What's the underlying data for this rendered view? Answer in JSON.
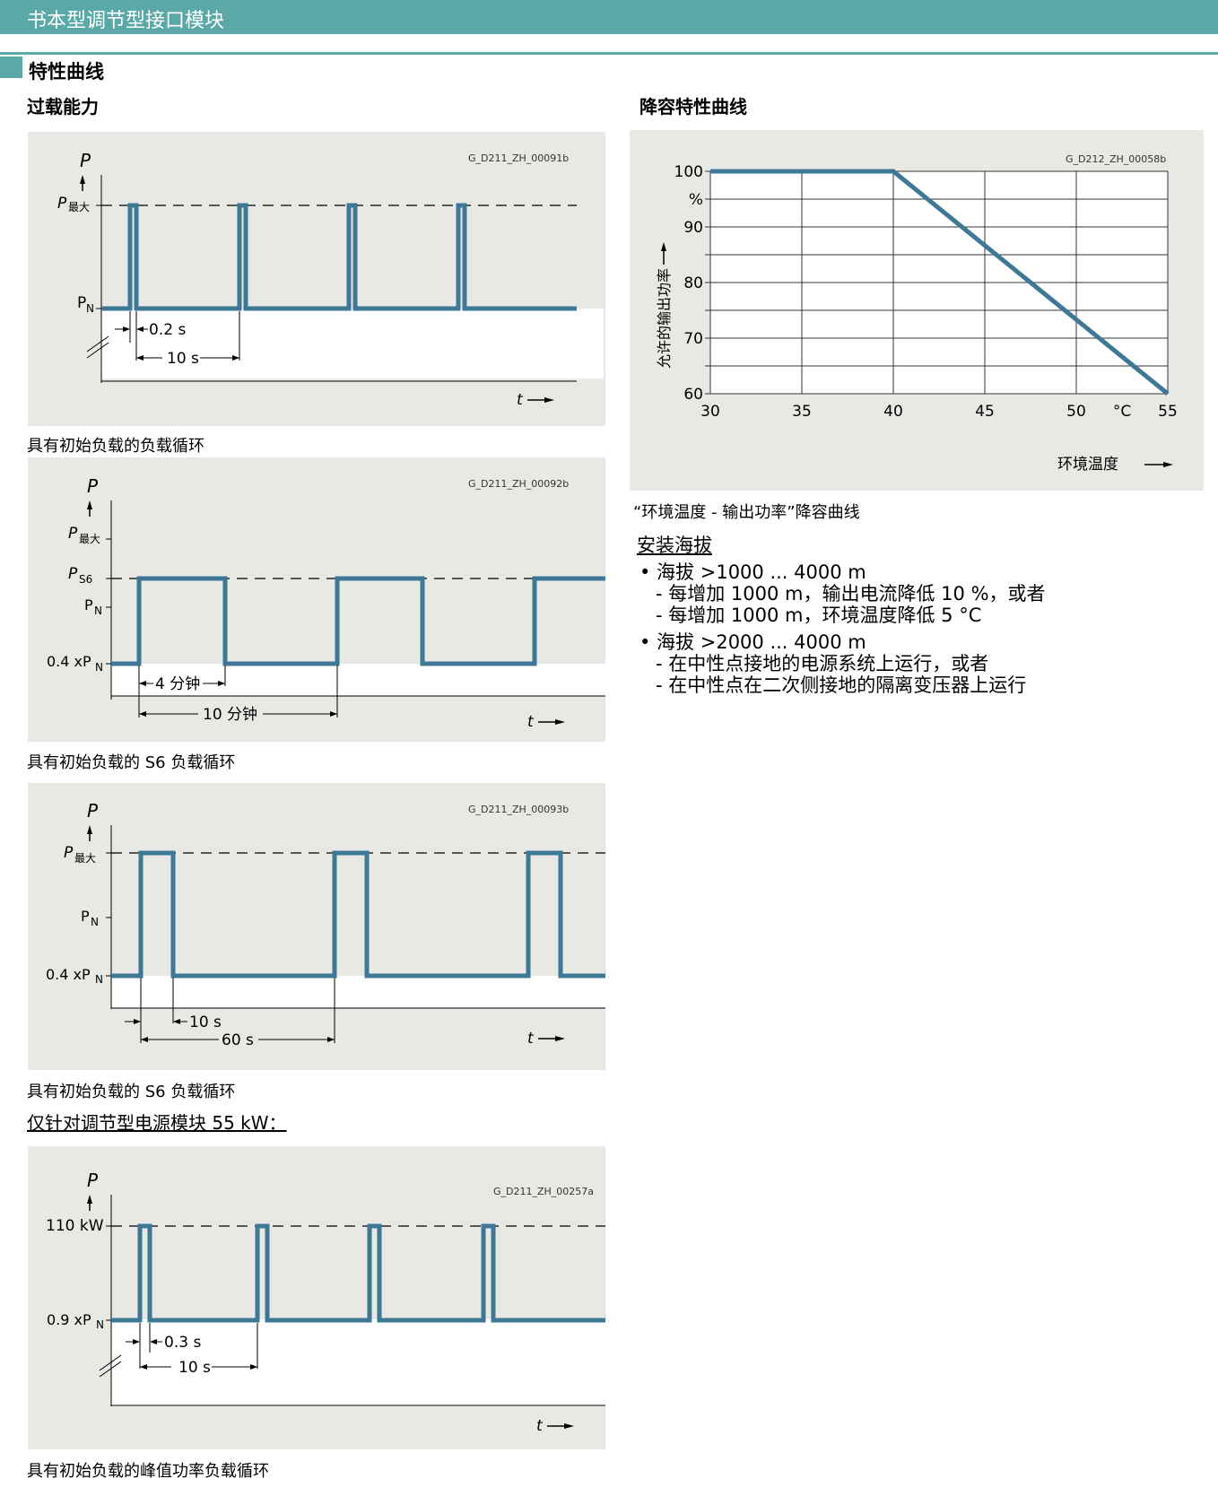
{
  "header": {
    "title": "书本型调节型接口模块"
  },
  "section": {
    "title": "特性曲线"
  },
  "overload": {
    "title": "过载能力"
  },
  "derating": {
    "title": "降容特性曲线"
  },
  "charts": {
    "c1": {
      "id": "G_D211_ZH_00091b",
      "y_label": "P",
      "pmax": "最大",
      "pn": "N",
      "t1": "0.2 s",
      "t2": "10 s",
      "t": "t",
      "caption": "具有初始负载的负载循环"
    },
    "c2": {
      "id": "G_D211_ZH_00092b",
      "y_label": "P",
      "pmax": "最大",
      "ps6": "S6",
      "pn": "P",
      "pn_sub": "N",
      "base": "0.4 xP",
      "base_sub": "N",
      "t1": "4 分钟",
      "t2": "10 分钟",
      "t": "t",
      "caption": "具有初始负载的 S6 负载循环"
    },
    "c3": {
      "id": "G_D211_ZH_00093b",
      "y_label": "P",
      "pmax": "最大",
      "pn": "P",
      "pn_sub": "N",
      "base": "0.4 xP",
      "base_sub": "N",
      "t1": "10 s",
      "t2": "60 s",
      "t": "t",
      "caption": "具有初始负载的 S6 负载循环"
    },
    "note55": "仅针对调节型电源模块 55 kW：",
    "c4": {
      "id": "G_D211_ZH_00257a",
      "y_label": "P",
      "peak": "110 kW",
      "base": "0.9 xP",
      "base_sub": "N",
      "t1": "0.3 s",
      "t2": "10 s",
      "t": "t",
      "caption": "具有初始负载的峰值功率负载循环"
    }
  },
  "chart_data": {
    "type": "line",
    "id": "G_D212_ZH_00058b",
    "x": [
      30,
      40,
      55
    ],
    "series": [
      {
        "values": [
          100,
          100,
          60
        ]
      }
    ],
    "xticks": [
      "30",
      "35",
      "40",
      "45",
      "50",
      "°C",
      "55"
    ],
    "yticks": [
      "100",
      "%",
      "90",
      "80",
      "70",
      "60"
    ],
    "xlabel": "环境温度",
    "ylabel": "允许的输出功率",
    "xlim": [
      30,
      55
    ],
    "ylim": [
      60,
      100
    ],
    "grid": true,
    "line_color": "#3e7896",
    "caption": "“环境温度 - 输出功率”降容曲线"
  },
  "installation": {
    "title": "安装海拔",
    "b1": "•  海拔 >1000 ... 4000 m",
    "b1a": "- 每增加 1000 m，输出电流降低 10 %，或者",
    "b1b": "- 每增加 1000 m，环境温度降低 5 °C",
    "b2": "•  海拔 >2000 ... 4000 m",
    "b2a": "- 在中性点接地的电源系统上运行，或者",
    "b2b": "- 在中性点在二次侧接地的隔离变压器上运行"
  },
  "colors": {
    "accent": "#5aa8a8",
    "curve": "#3e7896",
    "panel": "#e8e8e5"
  }
}
